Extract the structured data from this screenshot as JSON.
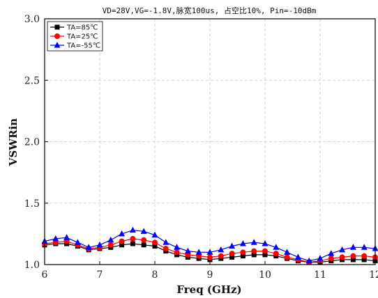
{
  "chart_data": {
    "type": "line",
    "title": "VD=28V,VG=-1.8V,脉宽100us, 占空比10%, Pin=-10dBm",
    "xlabel": "Freq (GHz)",
    "ylabel": "VSWRin",
    "xlim": [
      6,
      12
    ],
    "ylim": [
      1.0,
      3.0
    ],
    "xticks": [
      "6",
      "7",
      "8",
      "9",
      "10",
      "11",
      "12"
    ],
    "yticks": [
      "1.0",
      "1.5",
      "2.0",
      "2.5",
      "3.0"
    ],
    "grid": true,
    "legend_position": "top-left",
    "x": [
      6.0,
      6.2,
      6.4,
      6.6,
      6.8,
      7.0,
      7.2,
      7.4,
      7.6,
      7.8,
      8.0,
      8.2,
      8.4,
      8.6,
      8.8,
      9.0,
      9.2,
      9.4,
      9.6,
      9.8,
      10.0,
      10.2,
      10.4,
      10.6,
      10.8,
      11.0,
      11.2,
      11.4,
      11.6,
      11.8,
      12.0
    ],
    "series": [
      {
        "name": "TA=85℃",
        "color": "#000000",
        "marker": "square",
        "values": [
          1.16,
          1.17,
          1.17,
          1.15,
          1.12,
          1.13,
          1.14,
          1.16,
          1.17,
          1.16,
          1.15,
          1.11,
          1.08,
          1.06,
          1.05,
          1.04,
          1.05,
          1.06,
          1.07,
          1.08,
          1.08,
          1.07,
          1.05,
          1.03,
          1.02,
          1.02,
          1.03,
          1.04,
          1.04,
          1.04,
          1.03
        ]
      },
      {
        "name": "TA=25℃",
        "color": "#ff0000",
        "marker": "circle",
        "values": [
          1.17,
          1.18,
          1.19,
          1.16,
          1.13,
          1.14,
          1.16,
          1.19,
          1.21,
          1.2,
          1.18,
          1.13,
          1.1,
          1.08,
          1.07,
          1.06,
          1.07,
          1.09,
          1.1,
          1.11,
          1.11,
          1.09,
          1.06,
          1.04,
          1.02,
          1.03,
          1.05,
          1.06,
          1.07,
          1.07,
          1.06
        ]
      },
      {
        "name": "TA=-55℃",
        "color": "#0000ff",
        "marker": "triangle",
        "values": [
          1.19,
          1.21,
          1.22,
          1.18,
          1.14,
          1.16,
          1.2,
          1.25,
          1.28,
          1.27,
          1.24,
          1.18,
          1.14,
          1.11,
          1.1,
          1.1,
          1.12,
          1.15,
          1.17,
          1.18,
          1.17,
          1.14,
          1.1,
          1.06,
          1.03,
          1.05,
          1.09,
          1.12,
          1.14,
          1.14,
          1.13
        ]
      }
    ]
  }
}
